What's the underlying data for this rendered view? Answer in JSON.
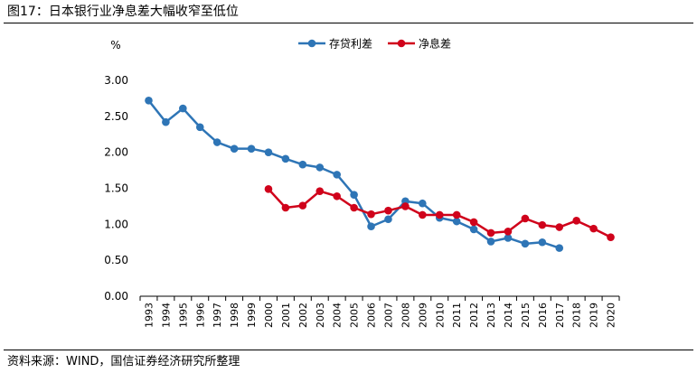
{
  "figure": {
    "title": "图17：日本银行业净息差大幅收窄至低位",
    "source": "资料来源：WIND，国信证券经济研究所整理"
  },
  "chart_data": {
    "type": "line",
    "title": "",
    "xlabel": "",
    "ylabel": "%",
    "ylim": [
      0,
      3
    ],
    "yticks": [
      "0.00",
      "0.50",
      "1.00",
      "1.50",
      "2.00",
      "2.50",
      "3.00"
    ],
    "grid": false,
    "legend": "top-right",
    "categories": [
      "1993",
      "1994",
      "1995",
      "1996",
      "1997",
      "1998",
      "1999",
      "2000",
      "2001",
      "2002",
      "2003",
      "2004",
      "2005",
      "2006",
      "2007",
      "2008",
      "2009",
      "2010",
      "2011",
      "2012",
      "2013",
      "2014",
      "2015",
      "2016",
      "2017",
      "2018",
      "2019",
      "2020"
    ],
    "series": [
      {
        "name": "存贷利差",
        "color": "#2e75b6",
        "values": [
          2.72,
          2.42,
          2.61,
          2.35,
          2.14,
          2.05,
          2.05,
          2.0,
          1.91,
          1.83,
          1.79,
          1.69,
          1.41,
          0.97,
          1.07,
          1.32,
          1.29,
          1.09,
          1.04,
          0.93,
          0.76,
          0.81,
          0.73,
          0.75,
          0.67,
          null,
          null,
          null
        ]
      },
      {
        "name": "净息差",
        "color": "#d0021b",
        "values": [
          null,
          null,
          null,
          null,
          null,
          null,
          null,
          1.49,
          1.23,
          1.26,
          1.46,
          1.39,
          1.23,
          1.14,
          1.19,
          1.25,
          1.13,
          1.13,
          1.13,
          1.03,
          0.88,
          0.9,
          1.08,
          0.99,
          0.96,
          1.05,
          0.94,
          0.82
        ]
      }
    ]
  }
}
